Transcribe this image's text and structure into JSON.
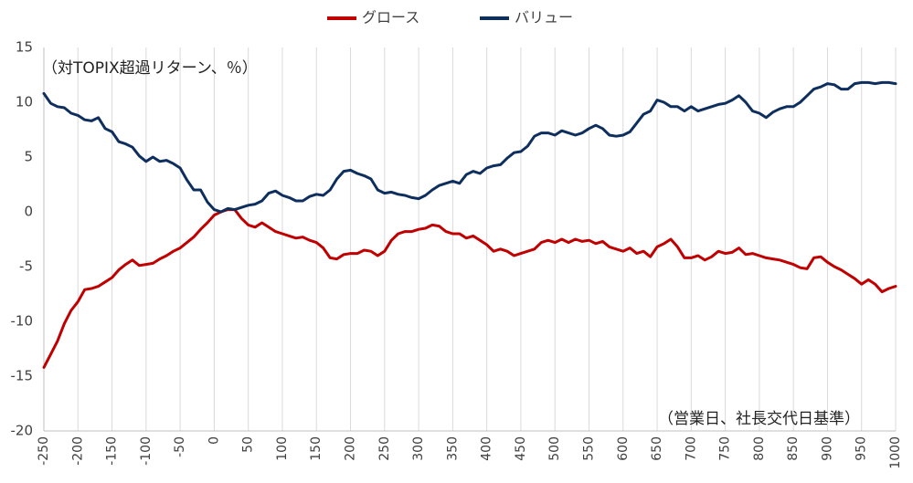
{
  "chart_data": {
    "type": "line",
    "annotations": {
      "ylabel": "（対TOPIX超過リターン、％）",
      "xlabel": "（営業日、社長交代日基準）"
    },
    "xlim": [
      -250,
      1000
    ],
    "ylim": [
      -20,
      15
    ],
    "grid": "vertical",
    "legend_position": "top-center",
    "x_ticks": [
      -250,
      -200,
      -150,
      -100,
      -50,
      0,
      50,
      100,
      150,
      200,
      250,
      300,
      350,
      400,
      450,
      500,
      550,
      600,
      650,
      700,
      750,
      800,
      850,
      900,
      950,
      1000
    ],
    "y_ticks": [
      15,
      10,
      5,
      0,
      -5,
      -10,
      -15,
      -20
    ],
    "series": [
      {
        "name": "グロース",
        "color": "#c00000",
        "points": [
          [
            -250,
            -14.2
          ],
          [
            -240,
            -13
          ],
          [
            -230,
            -11.8
          ],
          [
            -220,
            -10.2
          ],
          [
            -210,
            -9
          ],
          [
            -200,
            -8.2
          ],
          [
            -190,
            -7.1
          ],
          [
            -180,
            -7
          ],
          [
            -170,
            -6.8
          ],
          [
            -160,
            -6.4
          ],
          [
            -150,
            -6
          ],
          [
            -140,
            -5.3
          ],
          [
            -130,
            -4.8
          ],
          [
            -120,
            -4.4
          ],
          [
            -110,
            -4.9
          ],
          [
            -100,
            -4.8
          ],
          [
            -90,
            -4.7
          ],
          [
            -80,
            -4.3
          ],
          [
            -70,
            -4
          ],
          [
            -60,
            -3.6
          ],
          [
            -50,
            -3.3
          ],
          [
            -40,
            -2.8
          ],
          [
            -30,
            -2.3
          ],
          [
            -20,
            -1.6
          ],
          [
            -10,
            -1
          ],
          [
            0,
            -0.3
          ],
          [
            10,
            0
          ],
          [
            20,
            0.2
          ],
          [
            30,
            0.2
          ],
          [
            40,
            -0.6
          ],
          [
            50,
            -1.2
          ],
          [
            60,
            -1.4
          ],
          [
            70,
            -1.0
          ],
          [
            80,
            -1.4
          ],
          [
            90,
            -1.8
          ],
          [
            100,
            -2.0
          ],
          [
            110,
            -2.2
          ],
          [
            120,
            -2.4
          ],
          [
            130,
            -2.3
          ],
          [
            140,
            -2.6
          ],
          [
            150,
            -2.8
          ],
          [
            160,
            -3.3
          ],
          [
            170,
            -4.2
          ],
          [
            180,
            -4.3
          ],
          [
            190,
            -3.9
          ],
          [
            200,
            -3.8
          ],
          [
            210,
            -3.8
          ],
          [
            220,
            -3.5
          ],
          [
            230,
            -3.6
          ],
          [
            240,
            -4.0
          ],
          [
            250,
            -3.6
          ],
          [
            260,
            -2.6
          ],
          [
            270,
            -2.0
          ],
          [
            280,
            -1.8
          ],
          [
            290,
            -1.8
          ],
          [
            300,
            -1.6
          ],
          [
            310,
            -1.5
          ],
          [
            320,
            -1.2
          ],
          [
            330,
            -1.3
          ],
          [
            340,
            -1.8
          ],
          [
            350,
            -2.0
          ],
          [
            360,
            -2.0
          ],
          [
            370,
            -2.4
          ],
          [
            380,
            -2.2
          ],
          [
            390,
            -2.6
          ],
          [
            400,
            -3.0
          ],
          [
            410,
            -3.6
          ],
          [
            420,
            -3.4
          ],
          [
            430,
            -3.6
          ],
          [
            440,
            -4.0
          ],
          [
            450,
            -3.8
          ],
          [
            460,
            -3.6
          ],
          [
            470,
            -3.4
          ],
          [
            480,
            -2.8
          ],
          [
            490,
            -2.6
          ],
          [
            500,
            -2.8
          ],
          [
            510,
            -2.5
          ],
          [
            520,
            -2.8
          ],
          [
            530,
            -2.5
          ],
          [
            540,
            -2.7
          ],
          [
            550,
            -2.6
          ],
          [
            560,
            -2.9
          ],
          [
            570,
            -2.7
          ],
          [
            580,
            -3.2
          ],
          [
            590,
            -3.4
          ],
          [
            600,
            -3.6
          ],
          [
            610,
            -3.3
          ],
          [
            620,
            -3.8
          ],
          [
            630,
            -3.6
          ],
          [
            640,
            -4.1
          ],
          [
            650,
            -3.2
          ],
          [
            660,
            -2.9
          ],
          [
            670,
            -2.5
          ],
          [
            680,
            -3.2
          ],
          [
            690,
            -4.2
          ],
          [
            700,
            -4.2
          ],
          [
            710,
            -4.0
          ],
          [
            720,
            -4.4
          ],
          [
            730,
            -4.1
          ],
          [
            740,
            -3.6
          ],
          [
            750,
            -3.8
          ],
          [
            760,
            -3.7
          ],
          [
            770,
            -3.3
          ],
          [
            780,
            -3.9
          ],
          [
            790,
            -3.8
          ],
          [
            800,
            -4.0
          ],
          [
            810,
            -4.2
          ],
          [
            820,
            -4.3
          ],
          [
            830,
            -4.4
          ],
          [
            840,
            -4.6
          ],
          [
            850,
            -4.8
          ],
          [
            860,
            -5.1
          ],
          [
            870,
            -5.2
          ],
          [
            880,
            -4.2
          ],
          [
            890,
            -4.1
          ],
          [
            900,
            -4.6
          ],
          [
            910,
            -5.0
          ],
          [
            920,
            -5.3
          ],
          [
            930,
            -5.7
          ],
          [
            940,
            -6.1
          ],
          [
            950,
            -6.6
          ],
          [
            960,
            -6.2
          ],
          [
            970,
            -6.6
          ],
          [
            980,
            -7.3
          ],
          [
            990,
            -7.0
          ],
          [
            1000,
            -6.8
          ]
        ]
      },
      {
        "name": "バリュー",
        "color": "#0e2f5e",
        "points": [
          [
            -250,
            10.8
          ],
          [
            -240,
            9.9
          ],
          [
            -230,
            9.6
          ],
          [
            -220,
            9.5
          ],
          [
            -210,
            9.0
          ],
          [
            -200,
            8.8
          ],
          [
            -190,
            8.4
          ],
          [
            -180,
            8.3
          ],
          [
            -170,
            8.6
          ],
          [
            -160,
            7.6
          ],
          [
            -150,
            7.3
          ],
          [
            -140,
            6.4
          ],
          [
            -130,
            6.2
          ],
          [
            -120,
            5.9
          ],
          [
            -110,
            5.1
          ],
          [
            -100,
            4.6
          ],
          [
            -90,
            5.0
          ],
          [
            -80,
            4.6
          ],
          [
            -70,
            4.7
          ],
          [
            -60,
            4.4
          ],
          [
            -50,
            4.0
          ],
          [
            -40,
            2.9
          ],
          [
            -30,
            2.0
          ],
          [
            -20,
            2.0
          ],
          [
            -10,
            0.9
          ],
          [
            0,
            0.2
          ],
          [
            10,
            0
          ],
          [
            20,
            0.3
          ],
          [
            30,
            0.2
          ],
          [
            40,
            0.4
          ],
          [
            50,
            0.6
          ],
          [
            60,
            0.7
          ],
          [
            70,
            1.0
          ],
          [
            80,
            1.7
          ],
          [
            90,
            1.9
          ],
          [
            100,
            1.5
          ],
          [
            110,
            1.3
          ],
          [
            120,
            1.0
          ],
          [
            130,
            1.0
          ],
          [
            140,
            1.4
          ],
          [
            150,
            1.6
          ],
          [
            160,
            1.5
          ],
          [
            170,
            2.0
          ],
          [
            180,
            3.0
          ],
          [
            190,
            3.7
          ],
          [
            200,
            3.8
          ],
          [
            210,
            3.5
          ],
          [
            220,
            3.3
          ],
          [
            230,
            3.0
          ],
          [
            240,
            2.0
          ],
          [
            250,
            1.7
          ],
          [
            260,
            1.8
          ],
          [
            270,
            1.6
          ],
          [
            280,
            1.5
          ],
          [
            290,
            1.3
          ],
          [
            300,
            1.2
          ],
          [
            310,
            1.5
          ],
          [
            320,
            2.0
          ],
          [
            330,
            2.4
          ],
          [
            340,
            2.6
          ],
          [
            350,
            2.8
          ],
          [
            360,
            2.6
          ],
          [
            370,
            3.4
          ],
          [
            380,
            3.7
          ],
          [
            390,
            3.5
          ],
          [
            400,
            4.0
          ],
          [
            410,
            4.2
          ],
          [
            420,
            4.3
          ],
          [
            430,
            4.9
          ],
          [
            440,
            5.4
          ],
          [
            450,
            5.5
          ],
          [
            460,
            6.0
          ],
          [
            470,
            6.9
          ],
          [
            480,
            7.2
          ],
          [
            490,
            7.2
          ],
          [
            500,
            7.0
          ],
          [
            510,
            7.4
          ],
          [
            520,
            7.2
          ],
          [
            530,
            7.0
          ],
          [
            540,
            7.2
          ],
          [
            550,
            7.6
          ],
          [
            560,
            7.9
          ],
          [
            570,
            7.6
          ],
          [
            580,
            7.0
          ],
          [
            590,
            6.9
          ],
          [
            600,
            7.0
          ],
          [
            610,
            7.3
          ],
          [
            620,
            8.1
          ],
          [
            630,
            8.9
          ],
          [
            640,
            9.2
          ],
          [
            650,
            10.2
          ],
          [
            660,
            10.0
          ],
          [
            670,
            9.6
          ],
          [
            680,
            9.6
          ],
          [
            690,
            9.2
          ],
          [
            700,
            9.6
          ],
          [
            710,
            9.2
          ],
          [
            720,
            9.4
          ],
          [
            730,
            9.6
          ],
          [
            740,
            9.8
          ],
          [
            750,
            9.9
          ],
          [
            760,
            10.2
          ],
          [
            770,
            10.6
          ],
          [
            780,
            10.0
          ],
          [
            790,
            9.2
          ],
          [
            800,
            9.0
          ],
          [
            810,
            8.6
          ],
          [
            820,
            9.1
          ],
          [
            830,
            9.4
          ],
          [
            840,
            9.6
          ],
          [
            850,
            9.6
          ],
          [
            860,
            10.0
          ],
          [
            870,
            10.6
          ],
          [
            880,
            11.2
          ],
          [
            890,
            11.4
          ],
          [
            900,
            11.7
          ],
          [
            910,
            11.6
          ],
          [
            920,
            11.2
          ],
          [
            930,
            11.2
          ],
          [
            940,
            11.7
          ],
          [
            950,
            11.8
          ],
          [
            960,
            11.8
          ],
          [
            970,
            11.7
          ],
          [
            980,
            11.8
          ],
          [
            990,
            11.8
          ],
          [
            1000,
            11.7
          ]
        ]
      }
    ]
  }
}
